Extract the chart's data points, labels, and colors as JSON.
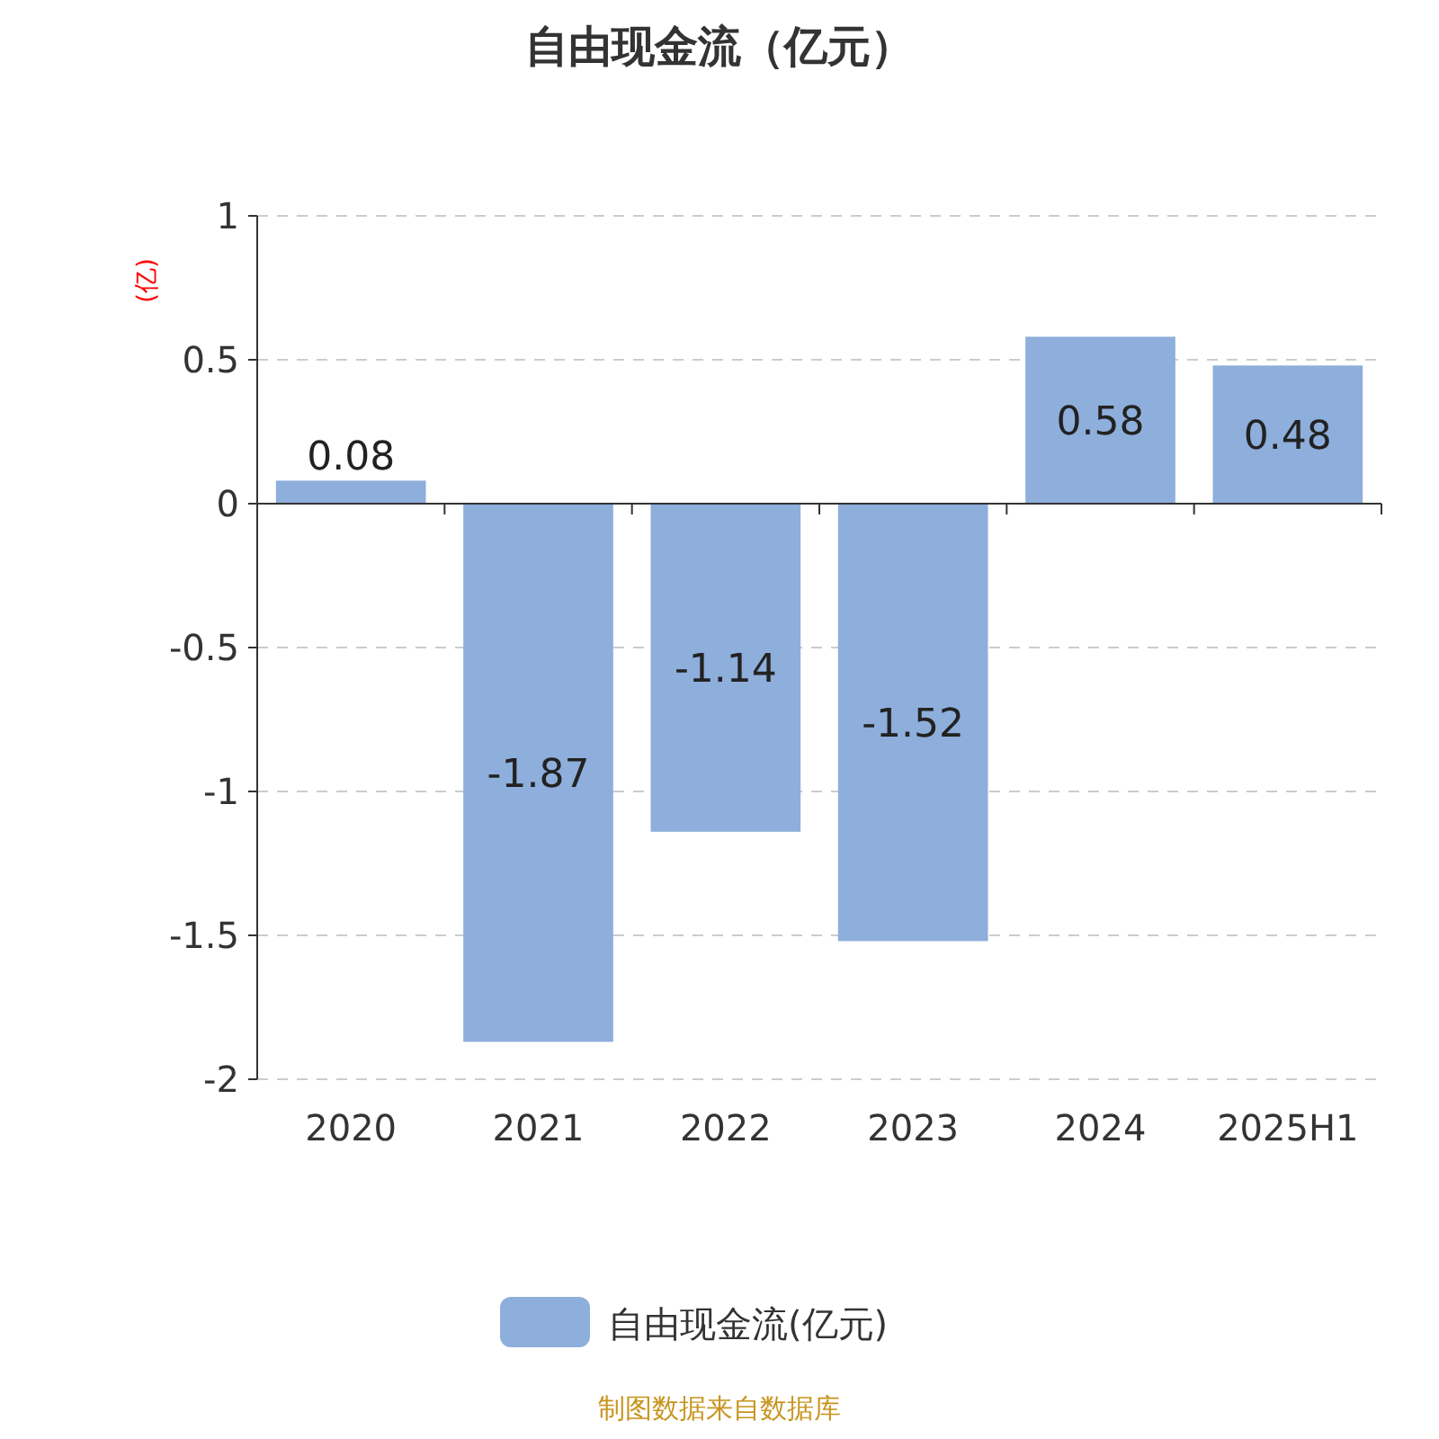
{
  "chart_data": {
    "type": "bar",
    "title": "自由现金流（亿元）",
    "ylabel": "(亿)",
    "categories": [
      "2020",
      "2021",
      "2022",
      "2023",
      "2024",
      "2025H1"
    ],
    "series": [
      {
        "name": "自由现金流(亿元)",
        "color": "#8eaedb",
        "values": [
          0.08,
          -1.87,
          -1.14,
          -1.52,
          0.58,
          0.48
        ]
      }
    ],
    "ylim": [
      -2,
      1
    ],
    "yticks": [
      -2,
      -1.5,
      -1,
      -0.5,
      0,
      0.5,
      1
    ],
    "grid": "y",
    "legend": "bottom",
    "data_labels": true,
    "annotations": [
      "制图数据来自数据库"
    ]
  }
}
